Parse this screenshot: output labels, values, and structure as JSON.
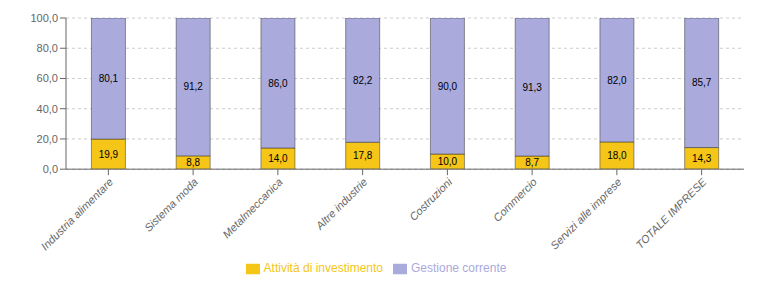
{
  "chart_data": {
    "type": "bar",
    "stacked": true,
    "categories": [
      "Industria alimentare",
      "Sistema moda",
      "Metalmeccanica",
      "Altre industrie",
      "Costruzioni",
      "Commercio",
      "Servizi alle imprese",
      "TOTALE IMPRESE"
    ],
    "series": [
      {
        "name": "Attività di investimento",
        "color": "#F5C518",
        "values": [
          19.9,
          8.8,
          14.0,
          17.8,
          10.0,
          8.7,
          18.0,
          14.3
        ],
        "value_labels": [
          "19,9",
          "8,8",
          "14,0",
          "17,8",
          "10,0",
          "8,7",
          "18,0",
          "14,3"
        ]
      },
      {
        "name": "Gestione corrente",
        "color": "#AAAADD",
        "values": [
          80.1,
          91.2,
          86.0,
          82.2,
          90.0,
          91.3,
          82.0,
          85.7
        ],
        "value_labels": [
          "80,1",
          "91,2",
          "86,0",
          "82,2",
          "90,0",
          "91,3",
          "82,0",
          "85,7"
        ]
      }
    ],
    "ylim": [
      0,
      100
    ],
    "yticks": [
      {
        "value": 0,
        "label": "0,0"
      },
      {
        "value": 20,
        "label": "20,0"
      },
      {
        "value": 40,
        "label": "40,0"
      },
      {
        "value": 60,
        "label": "60,0"
      },
      {
        "value": 80,
        "label": "80,0"
      },
      {
        "value": 100,
        "label": "100,0"
      }
    ],
    "grid": true,
    "legend": "bottom",
    "data_labels": true
  }
}
